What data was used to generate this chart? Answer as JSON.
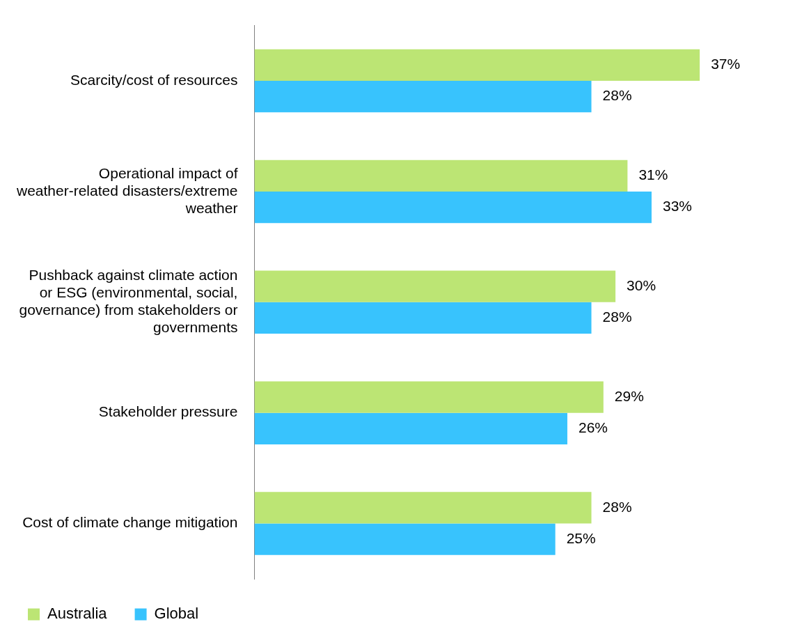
{
  "chart_data": {
    "type": "bar",
    "orientation": "horizontal",
    "categories": [
      "Scarcity/cost of resources",
      "Operational impact of weather-related disasters/extreme weather",
      "Pushback against climate action or ESG (environmental, social, governance) from stakeholders or governments",
      "Stakeholder pressure",
      "Cost of climate change mitigation"
    ],
    "series": [
      {
        "name": "Australia",
        "color": "#bce574",
        "values": [
          37,
          31,
          30,
          29,
          28
        ],
        "value_labels": [
          "37%",
          "31%",
          "30%",
          "29%",
          "28%"
        ]
      },
      {
        "name": "Global",
        "color": "#38c3fd",
        "values": [
          28,
          33,
          28,
          26,
          25
        ],
        "value_labels": [
          "28%",
          "33%",
          "28%",
          "26%",
          "25%"
        ]
      }
    ],
    "legend": "bottom left"
  }
}
